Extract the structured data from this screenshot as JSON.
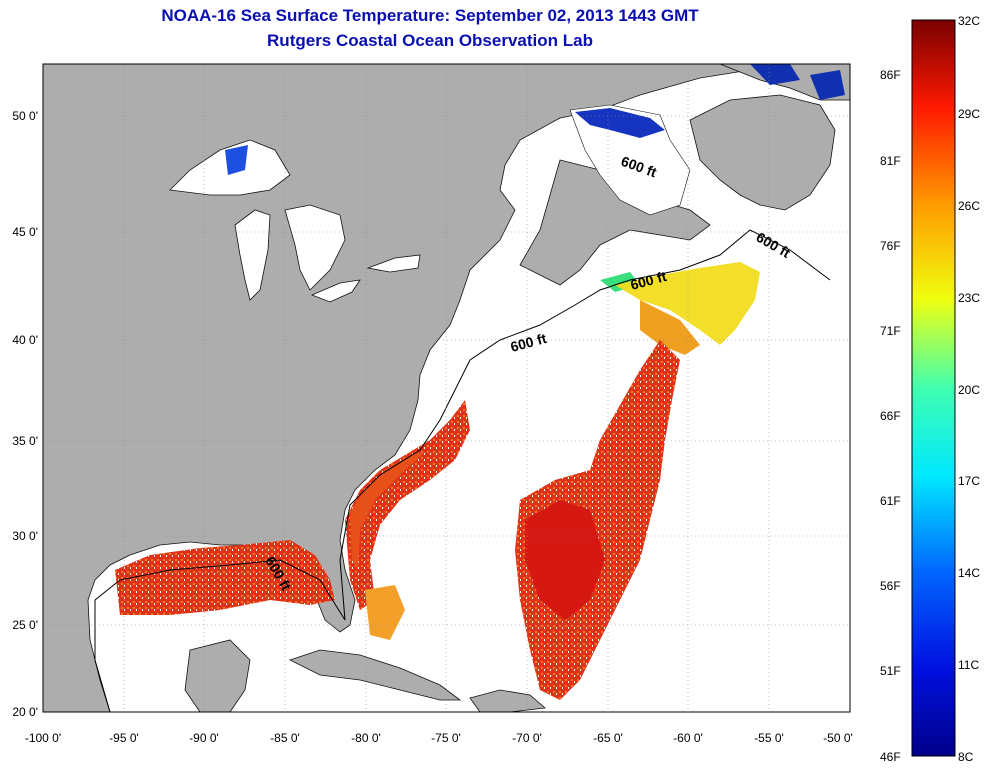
{
  "title": "NOAA-16 Sea Surface Temperature:  September 02, 2013 1443 GMT",
  "subtitle": "Rutgers Coastal Ocean Observation Lab",
  "axes": {
    "lon_ticks": [
      "-100 0'",
      "-95 0'",
      "-90 0'",
      "-85 0'",
      "-80 0'",
      "-75 0'",
      "-70 0'",
      "-65 0'",
      "-60 0'",
      "-55 0'",
      "-50 0'"
    ],
    "lat_ticks": [
      "20 0'",
      "25 0'",
      "30 0'",
      "35 0'",
      "40 0'",
      "45 0'",
      "50 0'"
    ],
    "lon_range": [
      -100,
      -50
    ],
    "lat_range": [
      20,
      52.5
    ]
  },
  "contour_label": "600 ft",
  "colorbar": {
    "celsius": [
      "32C",
      "29C",
      "26C",
      "23C",
      "20C",
      "17C",
      "14C",
      "11C",
      "8C"
    ],
    "fahrenheit": [
      "86F",
      "81F",
      "76F",
      "71F",
      "66F",
      "61F",
      "56F",
      "51F",
      "46F"
    ],
    "range_c": [
      8,
      32
    ]
  },
  "colors": {
    "title": "#0a0fb0",
    "land": "#adadad",
    "ocean_no_data": "#ffffff"
  }
}
